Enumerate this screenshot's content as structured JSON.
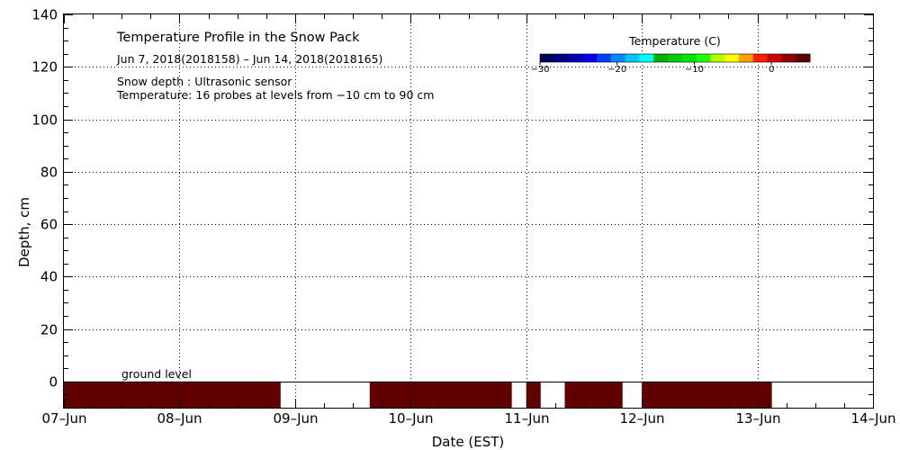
{
  "chart_data": {
    "type": "heatmap",
    "title": "Temperature Profile in the Snow Pack",
    "subtitle": "Jun  7, 2018(2018158) – Jun 14, 2018(2018165)",
    "notes": [
      "Snow depth : Ultrasonic sensor",
      "Temperature: 16 probes at levels from −10 cm to 90 cm"
    ],
    "xlabel": "Date (EST)",
    "ylabel": "Depth, cm",
    "xlim": [
      "2018-06-07T00:00",
      "2018-06-14T00:00"
    ],
    "x_ticks": [
      "07–Jun",
      "08–Jun",
      "09–Jun",
      "10–Jun",
      "11–Jun",
      "12–Jun",
      "13–Jun",
      "14–Jun"
    ],
    "ylim": [
      -10,
      140
    ],
    "y_ticks": [
      "0",
      "20",
      "40",
      "60",
      "80",
      "100",
      "120",
      "140"
    ],
    "grid": true,
    "ground_level_label": "ground level",
    "ground_level_value": 0,
    "colorbar": {
      "title": "Temperature (C)",
      "range": [
        -30,
        5
      ],
      "ticks": [
        "−30",
        "−20",
        "−10",
        "0"
      ],
      "colors": [
        "#00005a",
        "#000085",
        "#0000b5",
        "#0000e6",
        "#0040ff",
        "#0088ff",
        "#00c8ff",
        "#00ffff",
        "#00b000",
        "#00cc00",
        "#00e600",
        "#22ff00",
        "#b4ff00",
        "#ffff00",
        "#ffa000",
        "#ff2000",
        "#d00000",
        "#900000",
        "#600000"
      ]
    },
    "series": [
      {
        "y_range": [
          -10,
          0
        ],
        "color": "#600000",
        "segments": [
          [
            "2018-06-07T00:00",
            "2018-06-08T21:00"
          ],
          [
            "2018-06-09T15:30",
            "2018-06-10T21:00"
          ],
          [
            "2018-06-11T00:00",
            "2018-06-11T03:00"
          ],
          [
            "2018-06-11T08:00",
            "2018-06-11T20:00"
          ],
          [
            "2018-06-12T00:00",
            "2018-06-13T03:00"
          ]
        ]
      }
    ]
  }
}
